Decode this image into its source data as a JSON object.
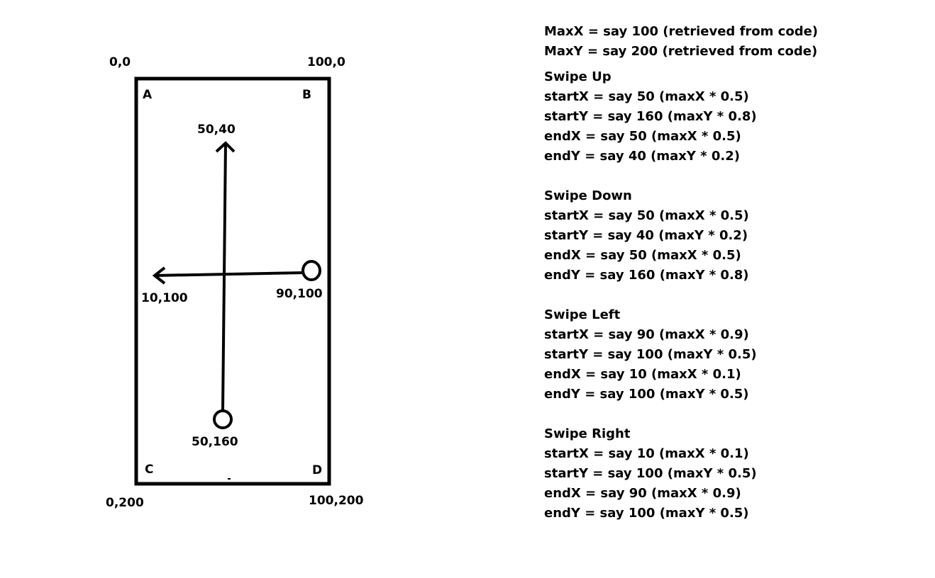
{
  "corner_coords": {
    "top_left": "0,0",
    "top_right": "100,0",
    "bottom_left": "0,200",
    "bottom_right": "100,200"
  },
  "corner_letters": {
    "a": "A",
    "b": "B",
    "c": "C",
    "d": "D"
  },
  "point_labels": {
    "up_end": "50,40",
    "left_end": "10,100",
    "left_start": "90,100",
    "up_start": "50,160"
  },
  "notes": {
    "max_lines": [
      "MaxX = say 100 (retrieved from code)",
      "MaxY = say 200 (retrieved from code)"
    ],
    "sections": [
      {
        "title": "Swipe Up",
        "lines": [
          "startX = say 50 (maxX * 0.5)",
          "startY = say 160 (maxY * 0.8)",
          "endX = say 50 (maxX * 0.5)",
          "endY = say 40 (maxY * 0.2)"
        ]
      },
      {
        "title": "Swipe Down",
        "lines": [
          "startX = say 50 (maxX * 0.5)",
          "startY = say 40 (maxY * 0.2)",
          "endX = say 50 (maxX * 0.5)",
          "endY = say 160 (maxY * 0.8)"
        ]
      },
      {
        "title": "Swipe Left",
        "lines": [
          "startX = say 90 (maxX * 0.9)",
          "startY = say 100 (maxY * 0.5)",
          "endX = say 10 (maxX * 0.1)",
          "endY = say 100 (maxY * 0.5)"
        ]
      },
      {
        "title": "Swipe Right",
        "lines": [
          "startX = say 10 (maxX * 0.1)",
          "startY = say 100 (maxY * 0.5)",
          "endX = say 90 (maxX * 0.9)",
          "endY = say 100 (maxY * 0.5)"
        ]
      }
    ]
  }
}
